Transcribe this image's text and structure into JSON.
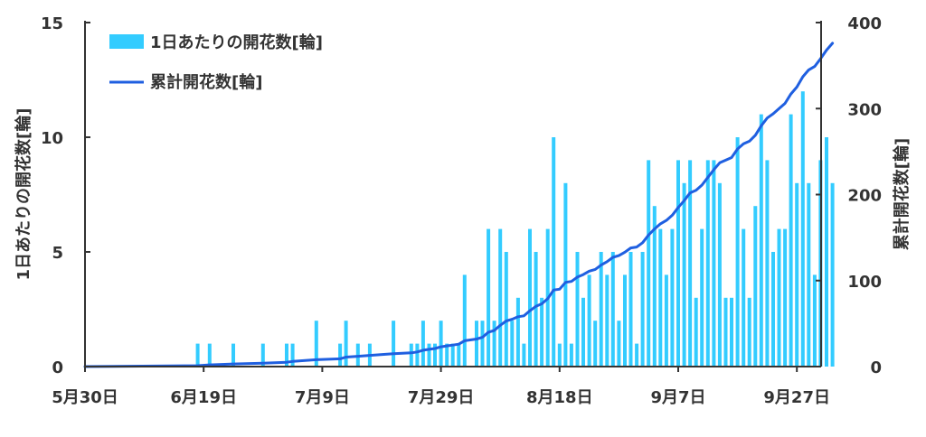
{
  "chart_data": {
    "type": "bar+line",
    "title": "",
    "colors": {
      "bars": "#33ccff",
      "line": "#1f5fe0",
      "axis": "#333333",
      "text": "#333333"
    },
    "x": {
      "start_date": "2020-05-30",
      "end_date": "2020-10-01",
      "ticks": [
        {
          "date": "2020-05-30",
          "label": "5月30日"
        },
        {
          "date": "2020-06-19",
          "label": "6月19日"
        },
        {
          "date": "2020-07-09",
          "label": "7月9日"
        },
        {
          "date": "2020-07-29",
          "label": "7月29日"
        },
        {
          "date": "2020-08-18",
          "label": "8月18日"
        },
        {
          "date": "2020-09-07",
          "label": "9月7日"
        },
        {
          "date": "2020-09-27",
          "label": "9月27日"
        }
      ]
    },
    "y_left": {
      "label": "1日あたりの開花数[輪]",
      "min": 0,
      "max": 15,
      "ticks": [
        0,
        5,
        10,
        15
      ]
    },
    "y_right": {
      "label": "累計開花数[輪]",
      "min": 0,
      "max": 400,
      "ticks": [
        0,
        100,
        200,
        300,
        400
      ]
    },
    "series": [
      {
        "name": "1日あたりの開花数[輪]",
        "type": "bar",
        "axis": "left",
        "points": [
          [
            "2020-06-18",
            1
          ],
          [
            "2020-06-20",
            1
          ],
          [
            "2020-06-24",
            1
          ],
          [
            "2020-06-29",
            1
          ],
          [
            "2020-07-03",
            1
          ],
          [
            "2020-07-04",
            1
          ],
          [
            "2020-07-08",
            2
          ],
          [
            "2020-07-12",
            1
          ],
          [
            "2020-07-13",
            2
          ],
          [
            "2020-07-15",
            1
          ],
          [
            "2020-07-17",
            1
          ],
          [
            "2020-07-21",
            2
          ],
          [
            "2020-07-24",
            1
          ],
          [
            "2020-07-25",
            1
          ],
          [
            "2020-07-26",
            2
          ],
          [
            "2020-07-27",
            1
          ],
          [
            "2020-07-28",
            1
          ],
          [
            "2020-07-29",
            2
          ],
          [
            "2020-07-30",
            1
          ],
          [
            "2020-07-31",
            1
          ],
          [
            "2020-08-01",
            1
          ],
          [
            "2020-08-02",
            4
          ],
          [
            "2020-08-04",
            2
          ],
          [
            "2020-08-05",
            2
          ],
          [
            "2020-08-06",
            6
          ],
          [
            "2020-08-07",
            2
          ],
          [
            "2020-08-08",
            6
          ],
          [
            "2020-08-09",
            5
          ],
          [
            "2020-08-10",
            2
          ],
          [
            "2020-08-11",
            3
          ],
          [
            "2020-08-12",
            1
          ],
          [
            "2020-08-13",
            6
          ],
          [
            "2020-08-14",
            5
          ],
          [
            "2020-08-15",
            3
          ],
          [
            "2020-08-16",
            6
          ],
          [
            "2020-08-17",
            10
          ],
          [
            "2020-08-18",
            1
          ],
          [
            "2020-08-19",
            8
          ],
          [
            "2020-08-20",
            1
          ],
          [
            "2020-08-21",
            5
          ],
          [
            "2020-08-22",
            3
          ],
          [
            "2020-08-23",
            4
          ],
          [
            "2020-08-24",
            2
          ],
          [
            "2020-08-25",
            5
          ],
          [
            "2020-08-26",
            4
          ],
          [
            "2020-08-27",
            5
          ],
          [
            "2020-08-28",
            2
          ],
          [
            "2020-08-29",
            4
          ],
          [
            "2020-08-30",
            5
          ],
          [
            "2020-08-31",
            1
          ],
          [
            "2020-09-01",
            5
          ],
          [
            "2020-09-02",
            9
          ],
          [
            "2020-09-03",
            7
          ],
          [
            "2020-09-04",
            6
          ],
          [
            "2020-09-05",
            4
          ],
          [
            "2020-09-06",
            6
          ],
          [
            "2020-09-07",
            9
          ],
          [
            "2020-09-08",
            8
          ],
          [
            "2020-09-09",
            9
          ],
          [
            "2020-09-10",
            3
          ],
          [
            "2020-09-11",
            6
          ],
          [
            "2020-09-12",
            9
          ],
          [
            "2020-09-13",
            9
          ],
          [
            "2020-09-14",
            8
          ],
          [
            "2020-09-15",
            3
          ],
          [
            "2020-09-16",
            3
          ],
          [
            "2020-09-17",
            10
          ],
          [
            "2020-09-18",
            6
          ],
          [
            "2020-09-19",
            3
          ],
          [
            "2020-09-20",
            7
          ],
          [
            "2020-09-21",
            11
          ],
          [
            "2020-09-22",
            9
          ],
          [
            "2020-09-23",
            5
          ],
          [
            "2020-09-24",
            6
          ],
          [
            "2020-09-25",
            6
          ],
          [
            "2020-09-26",
            11
          ],
          [
            "2020-09-27",
            8
          ],
          [
            "2020-09-28",
            12
          ],
          [
            "2020-09-29",
            8
          ],
          [
            "2020-09-30",
            4
          ],
          [
            "2020-10-01",
            9
          ],
          [
            "2020-10-02",
            10
          ],
          [
            "2020-10-03",
            8
          ]
        ]
      },
      {
        "name": "累計開花数[輪]",
        "type": "line",
        "axis": "right",
        "points": [
          [
            "2020-05-30",
            0
          ],
          [
            "2020-06-18",
            1
          ],
          [
            "2020-06-20",
            2
          ],
          [
            "2020-06-24",
            3
          ],
          [
            "2020-06-29",
            4
          ],
          [
            "2020-07-03",
            5
          ],
          [
            "2020-07-04",
            6
          ],
          [
            "2020-07-08",
            8
          ],
          [
            "2020-07-12",
            9
          ],
          [
            "2020-07-13",
            11
          ],
          [
            "2020-07-15",
            12
          ],
          [
            "2020-07-17",
            13
          ],
          [
            "2020-07-21",
            15
          ],
          [
            "2020-07-24",
            16
          ],
          [
            "2020-07-25",
            17
          ],
          [
            "2020-07-26",
            19
          ],
          [
            "2020-07-27",
            20
          ],
          [
            "2020-07-28",
            21
          ],
          [
            "2020-07-29",
            23
          ],
          [
            "2020-07-30",
            24
          ],
          [
            "2020-07-31",
            25
          ],
          [
            "2020-08-01",
            26
          ],
          [
            "2020-08-02",
            30
          ],
          [
            "2020-08-04",
            32
          ],
          [
            "2020-08-05",
            34
          ],
          [
            "2020-08-06",
            40
          ],
          [
            "2020-08-07",
            42
          ],
          [
            "2020-08-08",
            48
          ],
          [
            "2020-08-09",
            53
          ],
          [
            "2020-08-10",
            55
          ],
          [
            "2020-08-11",
            58
          ],
          [
            "2020-08-12",
            59
          ],
          [
            "2020-08-13",
            65
          ],
          [
            "2020-08-14",
            70
          ],
          [
            "2020-08-15",
            73
          ],
          [
            "2020-08-16",
            79
          ],
          [
            "2020-08-17",
            89
          ],
          [
            "2020-08-18",
            90
          ],
          [
            "2020-08-19",
            98
          ],
          [
            "2020-08-20",
            99
          ],
          [
            "2020-08-21",
            104
          ],
          [
            "2020-08-22",
            107
          ],
          [
            "2020-08-23",
            111
          ],
          [
            "2020-08-24",
            113
          ],
          [
            "2020-08-25",
            118
          ],
          [
            "2020-08-26",
            122
          ],
          [
            "2020-08-27",
            127
          ],
          [
            "2020-08-28",
            129
          ],
          [
            "2020-08-29",
            133
          ],
          [
            "2020-08-30",
            138
          ],
          [
            "2020-08-31",
            139
          ],
          [
            "2020-09-01",
            144
          ],
          [
            "2020-09-02",
            153
          ],
          [
            "2020-09-03",
            160
          ],
          [
            "2020-09-04",
            166
          ],
          [
            "2020-09-05",
            170
          ],
          [
            "2020-09-06",
            176
          ],
          [
            "2020-09-07",
            185
          ],
          [
            "2020-09-08",
            193
          ],
          [
            "2020-09-09",
            202
          ],
          [
            "2020-09-10",
            205
          ],
          [
            "2020-09-11",
            211
          ],
          [
            "2020-09-12",
            220
          ],
          [
            "2020-09-13",
            229
          ],
          [
            "2020-09-14",
            237
          ],
          [
            "2020-09-15",
            240
          ],
          [
            "2020-09-16",
            243
          ],
          [
            "2020-09-17",
            253
          ],
          [
            "2020-09-18",
            259
          ],
          [
            "2020-09-19",
            262
          ],
          [
            "2020-09-20",
            269
          ],
          [
            "2020-09-21",
            280
          ],
          [
            "2020-09-22",
            289
          ],
          [
            "2020-09-23",
            294
          ],
          [
            "2020-09-24",
            300
          ],
          [
            "2020-09-25",
            306
          ],
          [
            "2020-09-26",
            317
          ],
          [
            "2020-09-27",
            325
          ],
          [
            "2020-09-28",
            337
          ],
          [
            "2020-09-29",
            345
          ],
          [
            "2020-09-30",
            349
          ],
          [
            "2020-10-01",
            358
          ],
          [
            "2020-10-02",
            368
          ],
          [
            "2020-10-03",
            376
          ]
        ]
      }
    ],
    "legend": {
      "placement": "top-left"
    },
    "grid": false
  }
}
